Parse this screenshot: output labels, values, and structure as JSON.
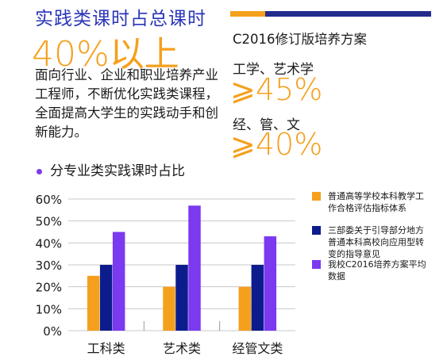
{
  "header": {
    "headline": "实践类课时占总课时",
    "big_percent": "40%以上",
    "description": "面向行业、企业和职业培养产业工程师，不断优化实践类课程，全面提高大学生的实践动手和创新能力。"
  },
  "plan": {
    "title": "C2016修订版培养方案",
    "items": [
      {
        "label": "工学、艺术学",
        "value": "⩾45%"
      },
      {
        "label": "经、管、文",
        "value": "⩾40%"
      }
    ]
  },
  "colors": {
    "blue_text": "#2a35b8",
    "orange": "#f5a01d",
    "navy": "#0d1c8c",
    "violet": "#7b39f0",
    "dark_bar": "#232b8c"
  },
  "chart_data": {
    "type": "bar",
    "title": "分专业类实践课时占比",
    "categories": [
      "工科类",
      "艺术类",
      "经管文类"
    ],
    "ylim": [
      0,
      0.6
    ],
    "yticks": [
      "0%",
      "10%",
      "20%",
      "30%",
      "40%",
      "50%",
      "60%"
    ],
    "grid": true,
    "legend_position": "right",
    "series": [
      {
        "name": "普通高等学校本科教学工作合格评估指标体系",
        "color": "#f5a01d",
        "values": [
          0.25,
          0.2,
          0.2
        ]
      },
      {
        "name": "三部委关于引导部分地方普通本科高校向应用型转变的指导意见",
        "color": "#0d1c8c",
        "values": [
          0.3,
          0.3,
          0.3
        ]
      },
      {
        "name": "我校C2016培养方案平均数据",
        "color": "#7b39f0",
        "values": [
          0.45,
          0.57,
          0.43
        ]
      }
    ]
  }
}
